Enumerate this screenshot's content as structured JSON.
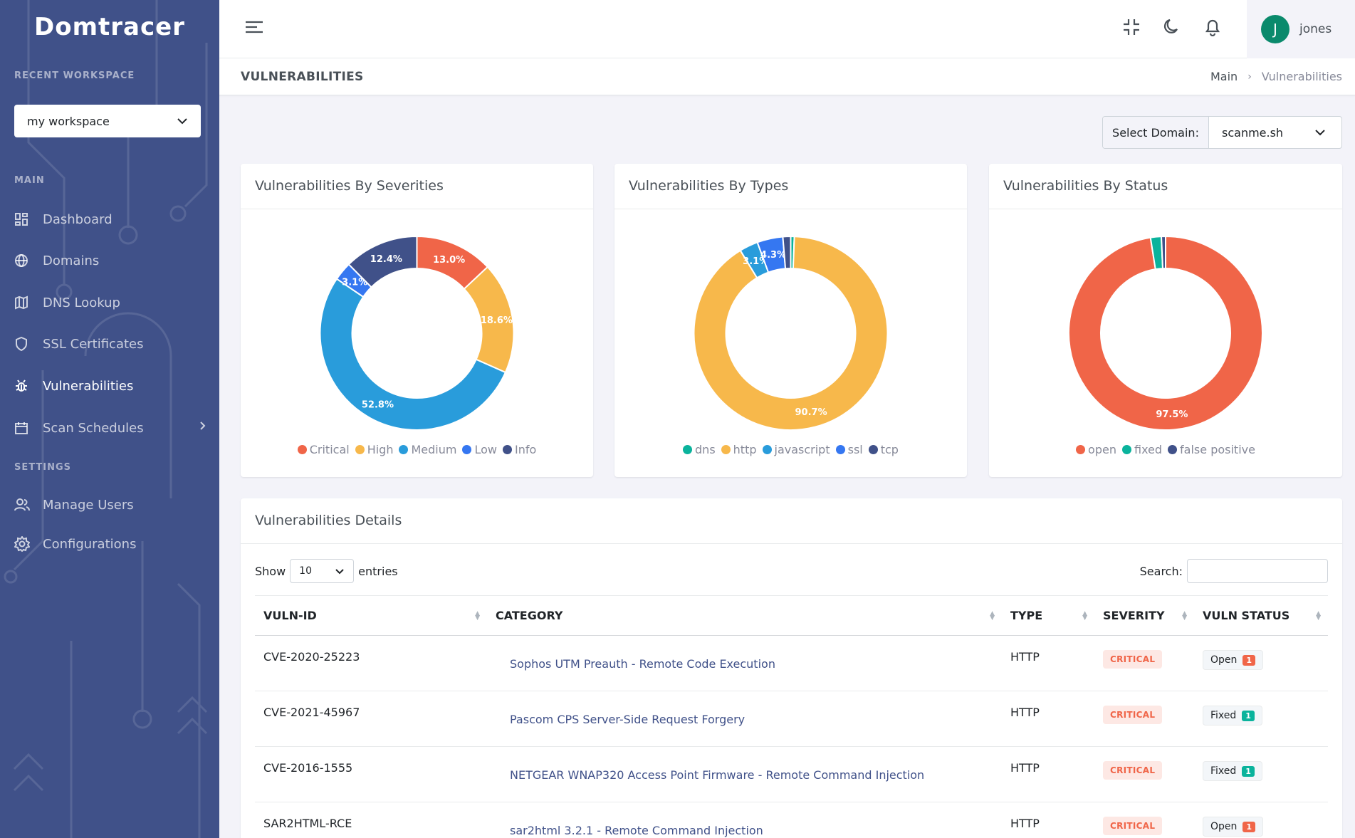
{
  "app": {
    "logo": "Domtracer"
  },
  "sidebar": {
    "recent_workspace_title": "RECENT WORKSPACE",
    "workspace_value": "my workspace",
    "main_title": "MAIN",
    "settings_title": "SETTINGS",
    "items": [
      {
        "label": "Dashboard",
        "icon": "dashboard-icon"
      },
      {
        "label": "Domains",
        "icon": "globe-icon"
      },
      {
        "label": "DNS Lookup",
        "icon": "map-icon"
      },
      {
        "label": "SSL Certificates",
        "icon": "shield-icon"
      },
      {
        "label": "Vulnerabilities",
        "icon": "bug-icon",
        "active": true
      },
      {
        "label": "Scan Schedules",
        "icon": "calendar-icon"
      }
    ],
    "settings_items": [
      {
        "label": "Manage Users",
        "icon": "users-icon"
      },
      {
        "label": "Configurations",
        "icon": "gear-icon"
      }
    ]
  },
  "header": {
    "user_initial": "J",
    "user_name": "jones"
  },
  "page": {
    "title": "VULNERABILITIES",
    "breadcrumb": [
      "Main",
      "Vulnerabilities"
    ]
  },
  "domain_select": {
    "label": "Select Domain:",
    "value": "scanme.sh"
  },
  "chart_data": [
    {
      "type": "pie",
      "title": "Vulnerabilities By Severities",
      "labels": [
        "Critical",
        "High",
        "Medium",
        "Low",
        "Info"
      ],
      "values": [
        13.0,
        18.6,
        52.8,
        3.1,
        12.4
      ],
      "data_labels": [
        "13.0%",
        "18.6%",
        "52.8%",
        "3.1%",
        "12.4%"
      ],
      "colors": [
        "#f06548",
        "#f7b84b",
        "#299cdb",
        "#3577f1",
        "#405189"
      ],
      "legend": "bottom"
    },
    {
      "type": "pie",
      "title": "Vulnerabilities By Types",
      "labels": [
        "dns",
        "http",
        "javascript",
        "ssl",
        "tcp"
      ],
      "values": [
        0.6,
        90.7,
        3.1,
        4.3,
        1.3
      ],
      "data_labels": [
        "",
        "90.7%",
        "3.1%",
        "4.3%",
        ""
      ],
      "colors": [
        "#0ab39c",
        "#f7b84b",
        "#299cdb",
        "#3577f1",
        "#405189"
      ],
      "legend": "bottom"
    },
    {
      "type": "pie",
      "title": "Vulnerabilities By Status",
      "labels": [
        "open",
        "fixed",
        "false positive"
      ],
      "values": [
        97.5,
        1.8,
        0.7
      ],
      "data_labels": [
        "97.5%",
        "",
        ""
      ],
      "colors": [
        "#f06548",
        "#0ab39c",
        "#405189"
      ],
      "legend": "bottom"
    }
  ],
  "table": {
    "title": "Vulnerabilities Details",
    "show_label": "Show",
    "entries_value": "10",
    "entries_label": "entries",
    "search_label": "Search:",
    "columns": [
      "VULN-ID",
      "CATEGORY",
      "TYPE",
      "SEVERITY",
      "VULN STATUS"
    ],
    "rows": [
      {
        "id": "CVE-2020-25223",
        "category": "Sophos UTM Preauth - Remote Code Execution",
        "type": "HTTP",
        "severity": "CRITICAL",
        "status": "Open",
        "count": "1",
        "status_color": "#f06548"
      },
      {
        "id": "CVE-2021-45967",
        "category": "Pascom CPS Server-Side Request Forgery",
        "type": "HTTP",
        "severity": "CRITICAL",
        "status": "Fixed",
        "count": "1",
        "status_color": "#0ab39c"
      },
      {
        "id": "CVE-2016-1555",
        "category": "NETGEAR WNAP320 Access Point Firmware - Remote Command Injection",
        "type": "HTTP",
        "severity": "CRITICAL",
        "status": "Fixed",
        "count": "1",
        "status_color": "#0ab39c"
      },
      {
        "id": "SAR2HTML-RCE",
        "category": "sar2html 3.2.1 - Remote Command Injection",
        "type": "HTTP",
        "severity": "CRITICAL",
        "status": "Open",
        "count": "1",
        "status_color": "#f06548"
      }
    ]
  }
}
